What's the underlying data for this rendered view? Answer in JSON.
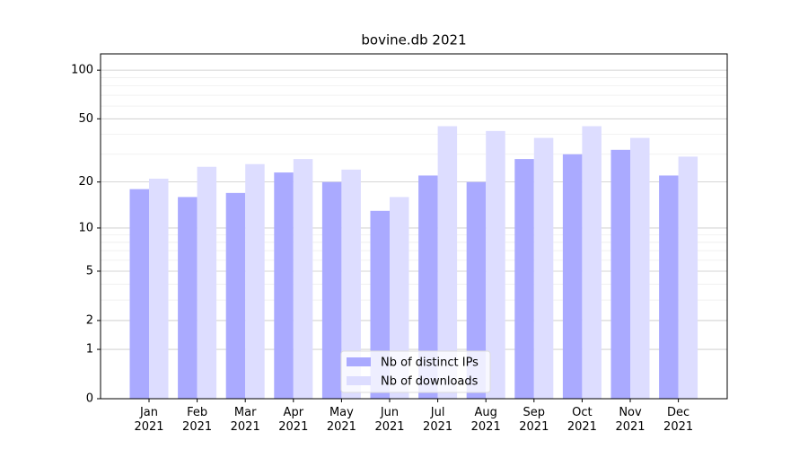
{
  "chart_data": {
    "type": "bar",
    "title": "bovine.db 2021",
    "categories": [
      "Jan\n2021",
      "Feb\n2021",
      "Mar\n2021",
      "Apr\n2021",
      "May\n2021",
      "Jun\n2021",
      "Jul\n2021",
      "Aug\n2021",
      "Sep\n2021",
      "Oct\n2021",
      "Nov\n2021",
      "Dec\n2021"
    ],
    "series": [
      {
        "name": "Nb of distinct IPs",
        "color": "#aaaaff",
        "values": [
          18,
          16,
          17,
          23,
          20,
          13,
          22,
          20,
          28,
          30,
          32,
          22
        ]
      },
      {
        "name": "Nb of downloads",
        "color": "#ddddff",
        "values": [
          21,
          25,
          26,
          28,
          24,
          16,
          45,
          42,
          38,
          45,
          38,
          29
        ]
      }
    ],
    "scale": "log1p",
    "ylim": [
      0,
      126
    ],
    "yticks": [
      0,
      1,
      2,
      5,
      10,
      20,
      50,
      100
    ],
    "minor_yticks": [
      3,
      4,
      6,
      7,
      8,
      9,
      30,
      40,
      60,
      70,
      80,
      90
    ],
    "grid": true,
    "legend": "lower center"
  }
}
